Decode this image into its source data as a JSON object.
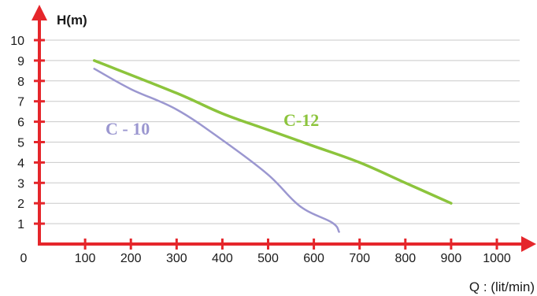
{
  "chart_data": {
    "type": "line",
    "xlabel": "Q : (lit/min)",
    "ylabel": "H(m)",
    "xlim": [
      0,
      1000
    ],
    "ylim": [
      0,
      10
    ],
    "x_ticks": [
      "100",
      "200",
      "300",
      "400",
      "500",
      "600",
      "700",
      "800",
      "900",
      "1000"
    ],
    "y_ticks": [
      "1",
      "2",
      "3",
      "4",
      "5",
      "6",
      "7",
      "8",
      "9",
      "10"
    ],
    "origin_label": "0",
    "grid": true,
    "series": [
      {
        "name": "C - 10",
        "color": "#9b97d0",
        "x": [
          120,
          200,
          300,
          400,
          500,
          570,
          640,
          655
        ],
        "y": [
          8.6,
          7.6,
          6.6,
          5.1,
          3.4,
          1.85,
          1.05,
          0.6
        ]
      },
      {
        "name": "C-12",
        "color": "#8cc43c",
        "x": [
          120,
          300,
          400,
          500,
          600,
          700,
          800,
          900
        ],
        "y": [
          9.0,
          7.4,
          6.4,
          5.6,
          4.8,
          4.0,
          3.0,
          2.0
        ]
      }
    ]
  },
  "colors": {
    "axis": "#e5262b",
    "grid": "#c9c9c9",
    "text": "#1a1a1a"
  }
}
